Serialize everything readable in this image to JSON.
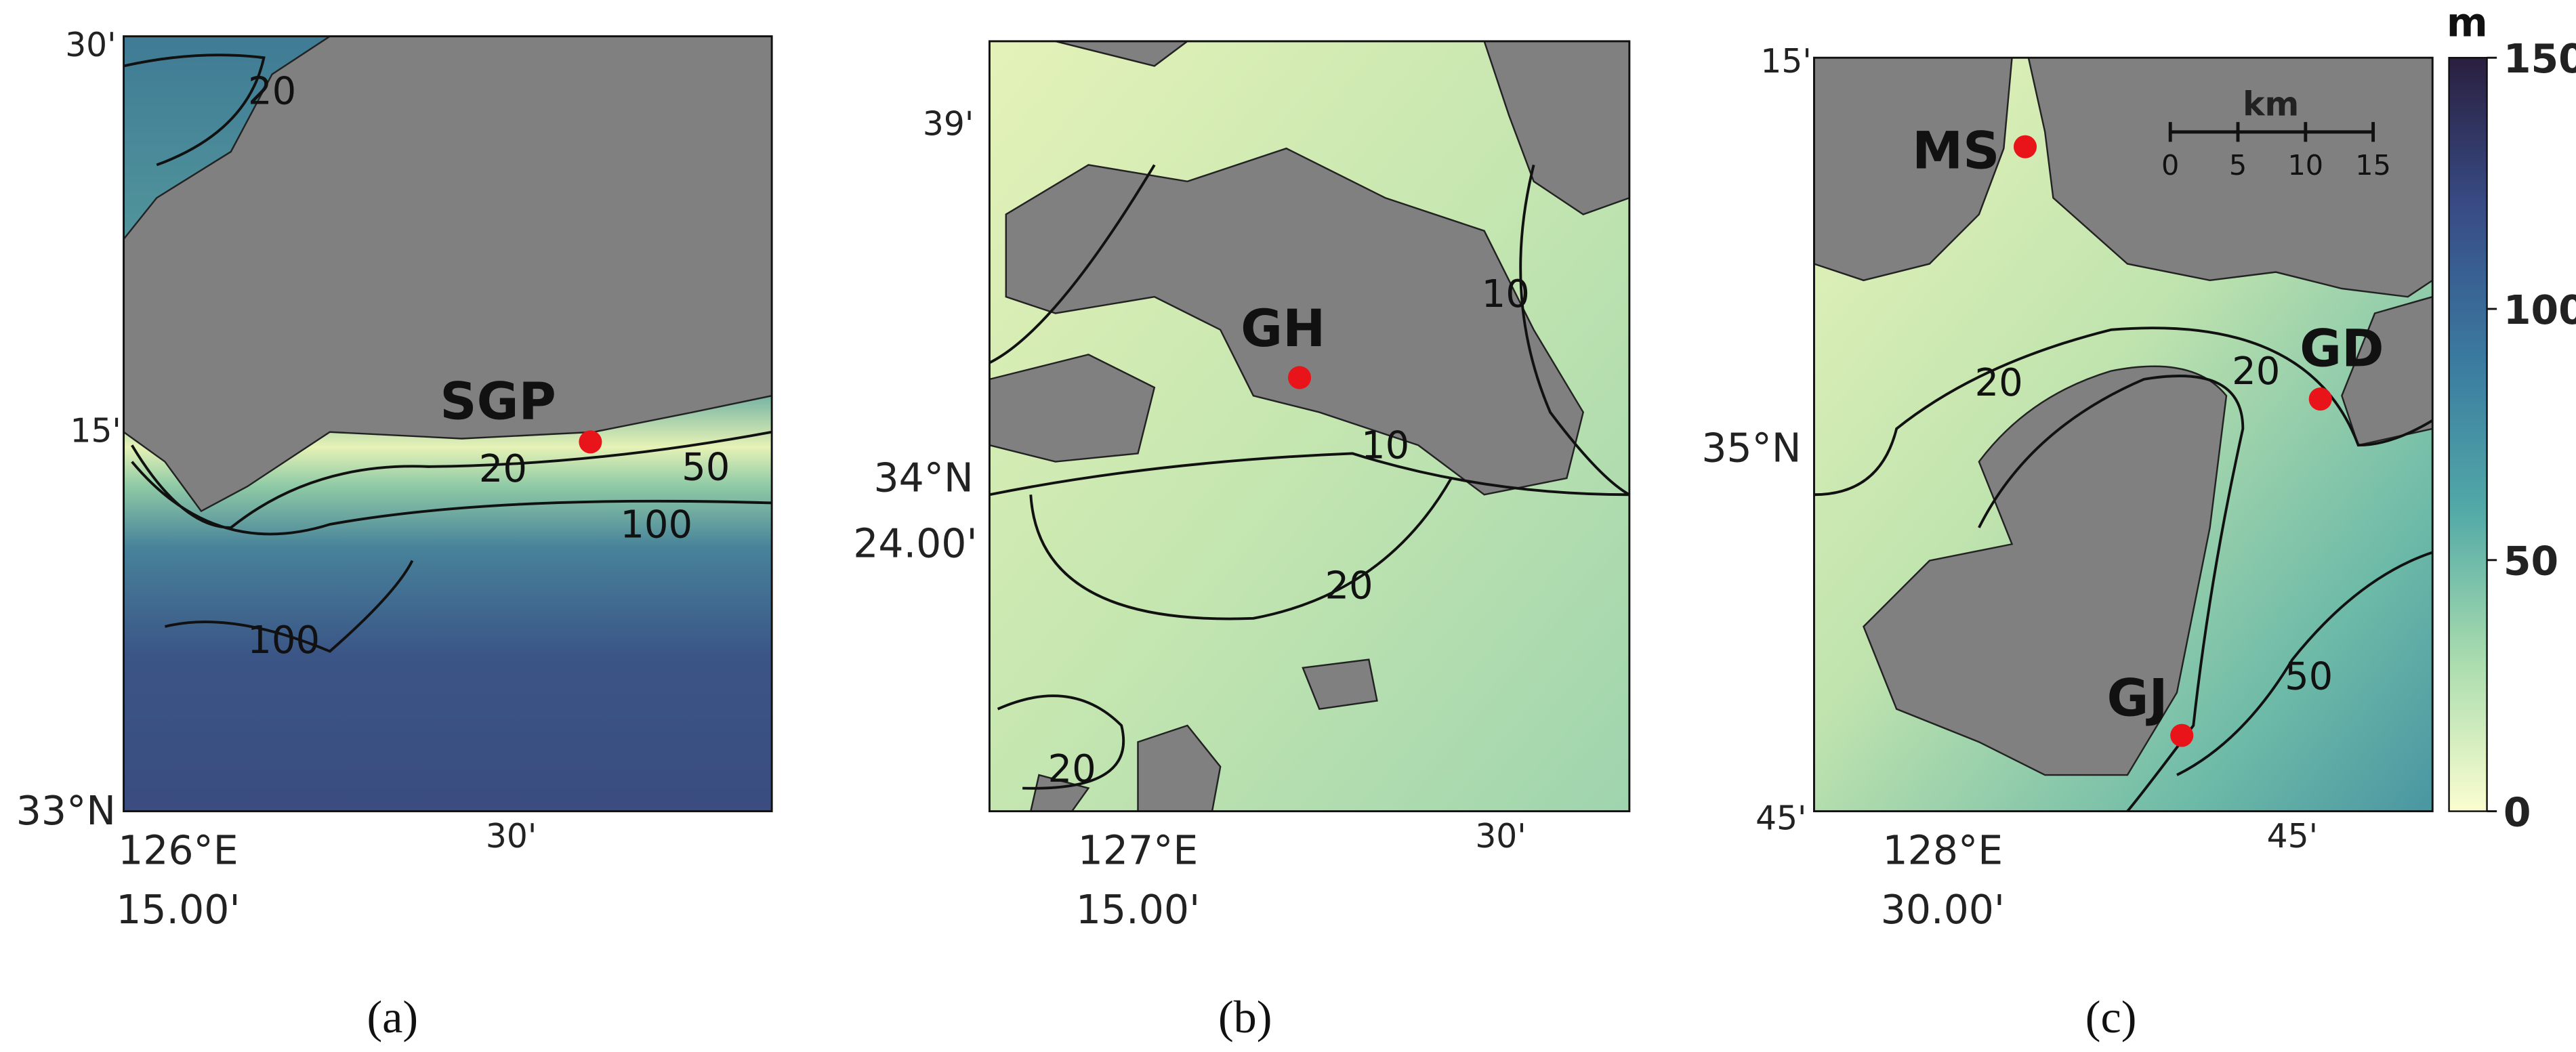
{
  "panels": [
    {
      "caption": "(a)",
      "lat_labels": [
        "30'",
        "15'",
        "33°N"
      ],
      "lon_labels": [
        "126°E",
        "15.00'",
        "30'"
      ],
      "sites": [
        "SGP"
      ],
      "contour_labels": [
        "20",
        "20",
        "50",
        "100",
        "100"
      ]
    },
    {
      "caption": "(b)",
      "lat_labels": [
        "39'",
        "34°N",
        "24.00'"
      ],
      "lon_labels": [
        "127°E",
        "15.00'",
        "30'"
      ],
      "sites": [
        "GH"
      ],
      "contour_labels": [
        "10",
        "10",
        "20",
        "20"
      ]
    },
    {
      "caption": "(c)",
      "lat_labels": [
        "15'",
        "35°N",
        "45'"
      ],
      "lon_labels": [
        "128°E",
        "30.00'",
        "45'"
      ],
      "sites": [
        "MS",
        "GD",
        "GJ"
      ],
      "contour_labels": [
        "20",
        "20",
        "50"
      ]
    }
  ],
  "scale_bar": {
    "unit": "km",
    "ticks": [
      0,
      5,
      10,
      15
    ]
  },
  "colorbar": {
    "unit": "m",
    "lim": [
      0,
      150
    ],
    "ticks": [
      0,
      50,
      100,
      150
    ]
  }
}
